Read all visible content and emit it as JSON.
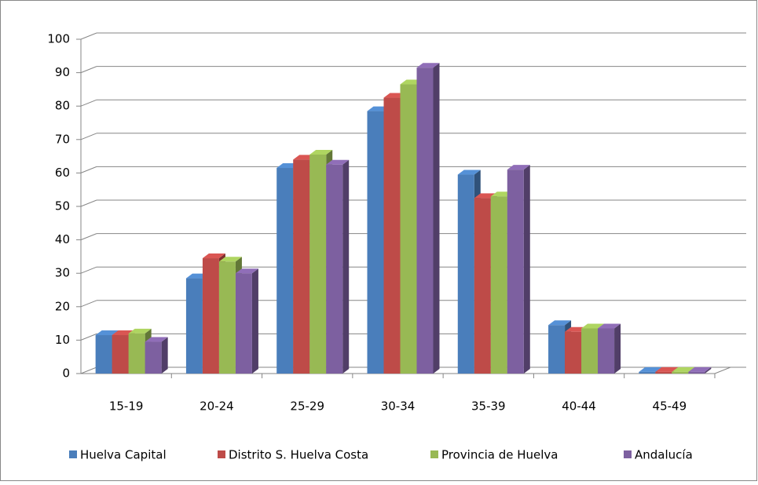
{
  "chart_data": {
    "type": "bar3d",
    "categories": [
      "15-19",
      "20-24",
      "25-29",
      "30-34",
      "35-39",
      "40-44",
      "45-49"
    ],
    "series": [
      {
        "name": "Huelva Capital",
        "color": "#4a7ebb",
        "values": [
          11.5,
          28.5,
          61.5,
          78.5,
          59.5,
          14.5,
          0.5
        ]
      },
      {
        "name": "Distrito S. Huelva Costa",
        "color": "#be4b48",
        "values": [
          11.5,
          34.5,
          64,
          82.5,
          52.5,
          12.5,
          0.5
        ]
      },
      {
        "name": "Provincia de Huelva",
        "color": "#98b954",
        "values": [
          12,
          33.5,
          65.5,
          86.5,
          53,
          13.5,
          0.5
        ]
      },
      {
        "name": "Andalucía",
        "color": "#7d60a0",
        "values": [
          9.5,
          30,
          62.5,
          91.5,
          61,
          13.5,
          0.5
        ]
      }
    ],
    "ylim": [
      0,
      100
    ],
    "yticks": [
      0,
      10,
      20,
      30,
      40,
      50,
      60,
      70,
      80,
      90,
      100
    ],
    "grid": true,
    "legend": "bottom"
  }
}
